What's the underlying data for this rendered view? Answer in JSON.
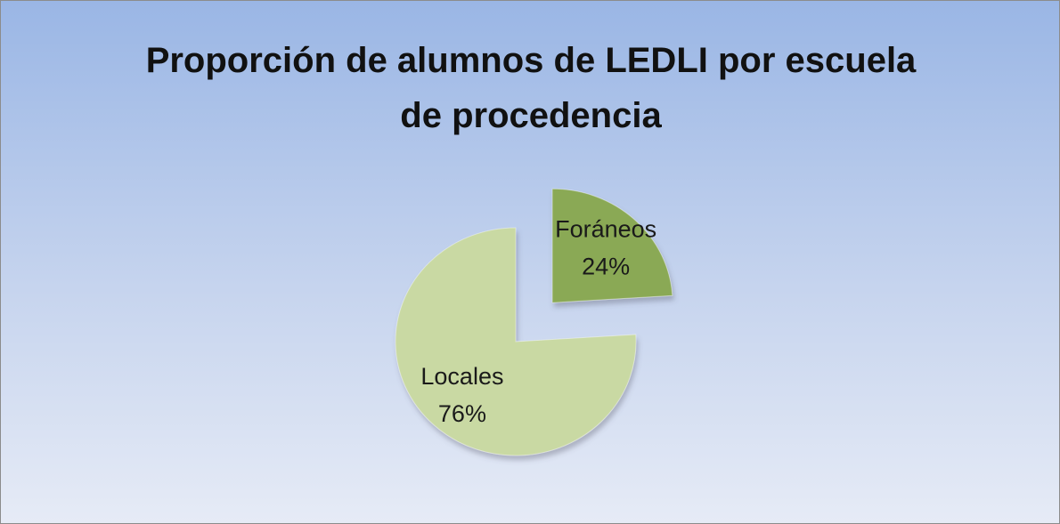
{
  "chart_data": {
    "type": "pie",
    "title": "Proporción de alumnos de LEDLI por escuela de procedencia",
    "categories": [
      "Foráneos",
      "Locales"
    ],
    "values": [
      24,
      76
    ],
    "value_labels": [
      "24%",
      "76%"
    ],
    "colors": [
      "#8aa955",
      "#c9d9a3"
    ]
  }
}
